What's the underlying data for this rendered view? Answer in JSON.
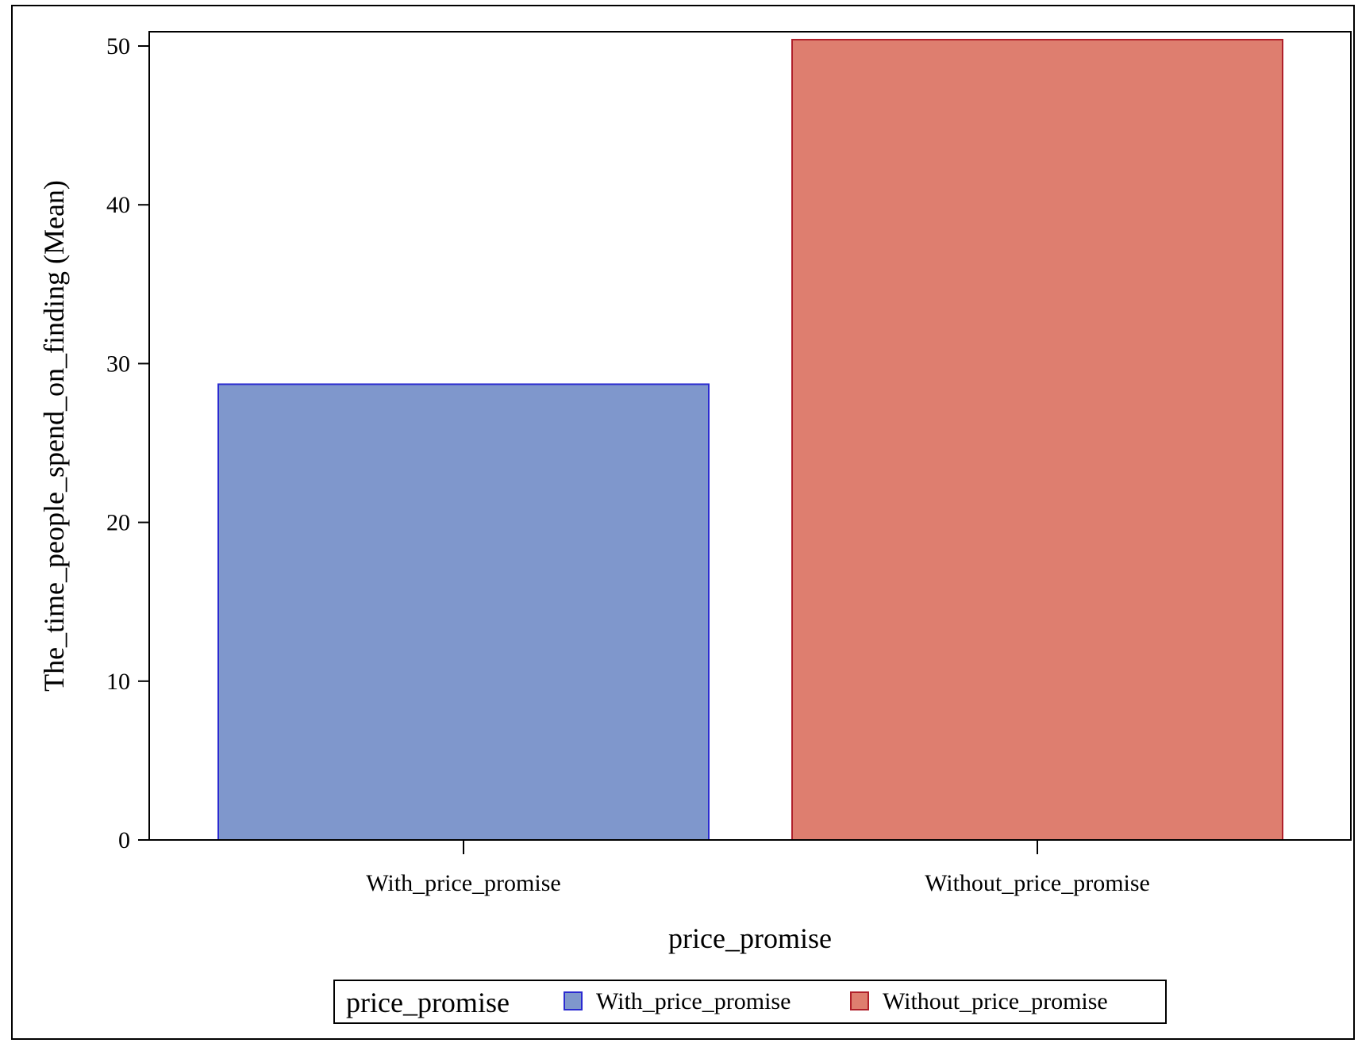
{
  "chart_data": {
    "type": "bar",
    "categories": [
      "With_price_promise",
      "Without_price_promise"
    ],
    "values": [
      28.7,
      50.4
    ],
    "colors": [
      "#7f97cc",
      "#de7e6f"
    ],
    "edge_colors": [
      "#2b2bd0",
      "#b0202a"
    ],
    "xlabel": "price_promise",
    "ylabel": "The_time_people_spend_on_finding (Mean)",
    "ylim": [
      0,
      50.9
    ],
    "yticks": [
      0,
      10,
      20,
      30,
      40,
      50
    ],
    "legend": {
      "title": "price_promise",
      "entries": [
        "With_price_promise",
        "Without_price_promise"
      ],
      "placement": "bottom"
    },
    "grid": false
  }
}
